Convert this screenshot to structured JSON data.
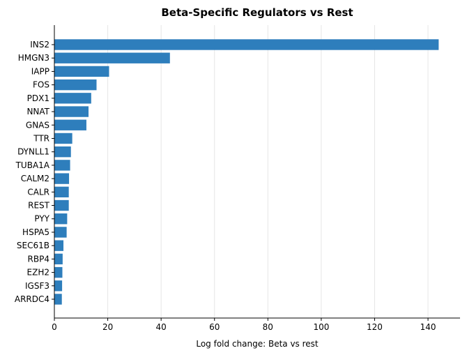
{
  "chart_data": {
    "type": "bar",
    "orientation": "horizontal",
    "title": "Beta-Specific Regulators vs Rest",
    "xlabel": "Log fold change: Beta vs rest",
    "ylabel": "",
    "xlim": [
      0,
      152
    ],
    "xticks": [
      0,
      20,
      40,
      60,
      80,
      100,
      120,
      140
    ],
    "grid": "vertical",
    "color": "#2e7ebc",
    "categories": [
      "INS2",
      "HMGN3",
      "IAPP",
      "FOS",
      "PDX1",
      "NNAT",
      "GNAS",
      "TTR",
      "DYNLL1",
      "TUBA1A",
      "CALM2",
      "CALR",
      "REST",
      "PYY",
      "HSPA5",
      "SEC61B",
      "RBP4",
      "EZH2",
      "IGSF3",
      "ARRDC4"
    ],
    "values": [
      144,
      43.3,
      20.5,
      15.8,
      13.8,
      12.8,
      12.0,
      6.7,
      6.2,
      5.9,
      5.5,
      5.4,
      5.4,
      4.8,
      4.6,
      3.4,
      3.1,
      3.0,
      2.9,
      2.8
    ]
  }
}
